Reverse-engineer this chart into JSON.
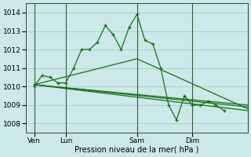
{
  "bg_color": "#cce8e8",
  "grid_color": "#aacccc",
  "line_color": "#1a6e1a",
  "xlabel": "Pression niveau de la mer( hPa )",
  "ylim": [
    1007.5,
    1014.5
  ],
  "yticks": [
    1008,
    1009,
    1010,
    1011,
    1012,
    1013,
    1014
  ],
  "xlim": [
    0,
    28
  ],
  "day_labels": [
    "Ven",
    "Lun",
    "Sam",
    "Dim"
  ],
  "day_positions": [
    1,
    5,
    14,
    21
  ],
  "vline_positions": [
    1,
    5,
    14,
    21
  ],
  "series1_x": [
    1,
    2,
    3,
    4,
    5,
    6,
    7,
    8,
    9,
    10,
    11,
    12,
    13,
    14,
    15,
    16,
    17,
    18,
    19,
    20,
    21,
    22,
    23,
    24,
    25
  ],
  "series1_y": [
    1010.0,
    1010.6,
    1010.5,
    1010.2,
    1010.2,
    1011.0,
    1012.0,
    1012.0,
    1012.4,
    1013.3,
    1012.8,
    1012.0,
    1013.2,
    1013.9,
    1012.5,
    1012.3,
    1011.0,
    1009.0,
    1008.2,
    1009.5,
    1009.0,
    1009.0,
    1009.2,
    1009.0,
    1008.7
  ],
  "series2_x": [
    1,
    28
  ],
  "series2_y": [
    1010.1,
    1009.0
  ],
  "series3_x": [
    1,
    28
  ],
  "series3_y": [
    1010.1,
    1008.9
  ],
  "series4_x": [
    1,
    28
  ],
  "series4_y": [
    1010.1,
    1008.7
  ],
  "series5_x": [
    1,
    14,
    28
  ],
  "series5_y": [
    1010.1,
    1011.5,
    1008.8
  ]
}
